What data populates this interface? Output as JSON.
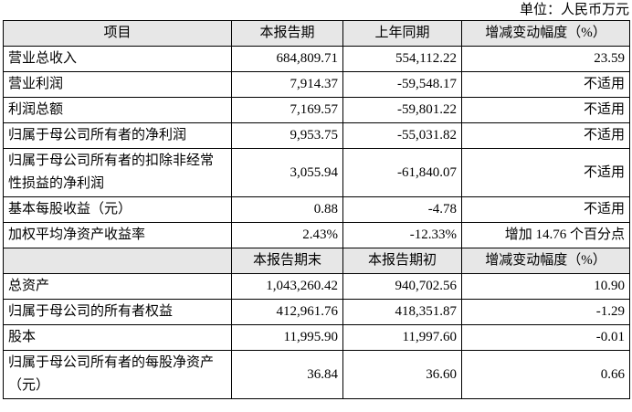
{
  "unit": "单位：人民币万元",
  "sections": [
    {
      "header": [
        "项目",
        "本报告期",
        "上年同期",
        "增减变动幅度（%）"
      ],
      "rows": [
        [
          "营业总收入",
          "684,809.71",
          "554,112.22",
          "23.59"
        ],
        [
          "营业利润",
          "7,914.37",
          "-59,548.17",
          "不适用"
        ],
        [
          "利润总额",
          "7,169.57",
          "-59,801.22",
          "不适用"
        ],
        [
          "归属于母公司所有者的净利润",
          "9,953.75",
          "-55,031.82",
          "不适用"
        ],
        [
          "归属于母公司所有者的扣除非经常性损益的净利润",
          "3,055.94",
          "-61,840.07",
          "不适用"
        ],
        [
          "基本每股收益（元）",
          "0.88",
          "-4.78",
          "不适用"
        ],
        [
          "加权平均净资产收益率",
          "2.43%",
          "-12.33%",
          "增加 14.76 个百分点"
        ]
      ]
    },
    {
      "header": [
        "",
        "本报告期末",
        "本报告期初",
        "增减变动幅度（%）"
      ],
      "rows": [
        [
          "总资产",
          "1,043,260.42",
          "940,702.56",
          "10.90"
        ],
        [
          "归属于母公司的所有者权益",
          "412,961.76",
          "418,351.87",
          "-1.29"
        ],
        [
          "股本",
          "11,995.90",
          "11,997.60",
          "-0.01"
        ],
        [
          "归属于母公司所有者的每股净资产（元）",
          "36.84",
          "36.60",
          "0.66"
        ]
      ]
    }
  ]
}
